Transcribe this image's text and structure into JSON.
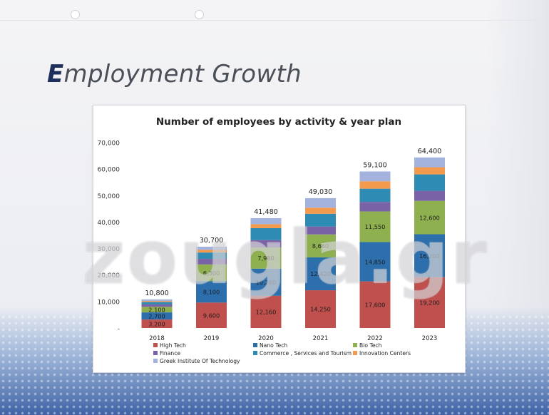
{
  "slide": {
    "title_first_letter": "E",
    "title_rest": "mployment Growth",
    "watermark": "zougla.gr"
  },
  "chart_data": {
    "type": "bar",
    "stacked": true,
    "title": "Number of employees  by activity & year plan",
    "categories": [
      "2018",
      "2019",
      "2020",
      "2021",
      "2022",
      "2023"
    ],
    "ylim": [
      0,
      70000
    ],
    "yticks": [
      0,
      10000,
      20000,
      30000,
      40000,
      50000,
      60000,
      70000
    ],
    "ytick_labels": [
      "-",
      "10,000",
      "20,000",
      "30,000",
      "40,000",
      "50,000",
      "60,000",
      "70,000"
    ],
    "grid": false,
    "legend_position": "bottom-left",
    "series": [
      {
        "name": "High Tech",
        "color": "#c0504d",
        "values": [
          3200,
          9600,
          12160,
          14250,
          17600,
          19200
        ],
        "labels": [
          "3,200",
          "9,600",
          "12,160",
          "14,250",
          "17,600",
          "19,200"
        ]
      },
      {
        "name": "Nano Tech",
        "color": "#2c6fac",
        "values": [
          2700,
          8100,
          10260,
          12420,
          14850,
          16200
        ],
        "labels": [
          "2,700",
          "8,100",
          "10,260",
          "12,420",
          "14,850",
          "16,200"
        ]
      },
      {
        "name": "Bio Tech",
        "color": "#8eb04e",
        "values": [
          2100,
          6300,
          7980,
          8660,
          11550,
          12600
        ],
        "labels": [
          "2,100",
          "6,300",
          "7,980",
          "8,660",
          "11,550",
          "12,600"
        ]
      },
      {
        "name": "Finance",
        "color": "#7a62a6",
        "values": [
          900,
          2100,
          2800,
          3000,
          3600,
          3800
        ],
        "labels": [
          "",
          "",
          "",
          "",
          "",
          ""
        ]
      },
      {
        "name": "Commerce , Services and Tourism",
        "color": "#2e8bb3",
        "values": [
          900,
          2400,
          4500,
          4800,
          5000,
          6200
        ],
        "labels": [
          "",
          "",
          "",
          "",
          "",
          ""
        ]
      },
      {
        "name": "Innovation Centers",
        "color": "#f39a4d",
        "values": [
          400,
          1000,
          1500,
          2300,
          2800,
          2700
        ],
        "labels": [
          "",
          "",
          "",
          "",
          "",
          ""
        ]
      },
      {
        "name": "Greek Institute Of Technology",
        "color": "#a3b3dd",
        "values": [
          600,
          1200,
          2280,
          3600,
          3700,
          3700
        ],
        "labels": [
          "",
          "",
          "",
          "",
          "",
          ""
        ]
      }
    ],
    "totals": [
      10800,
      30700,
      41480,
      49030,
      59100,
      64400
    ],
    "total_labels": [
      "10,800",
      "30,700",
      "41,480",
      "49,030",
      "59,100",
      "64,400"
    ]
  }
}
